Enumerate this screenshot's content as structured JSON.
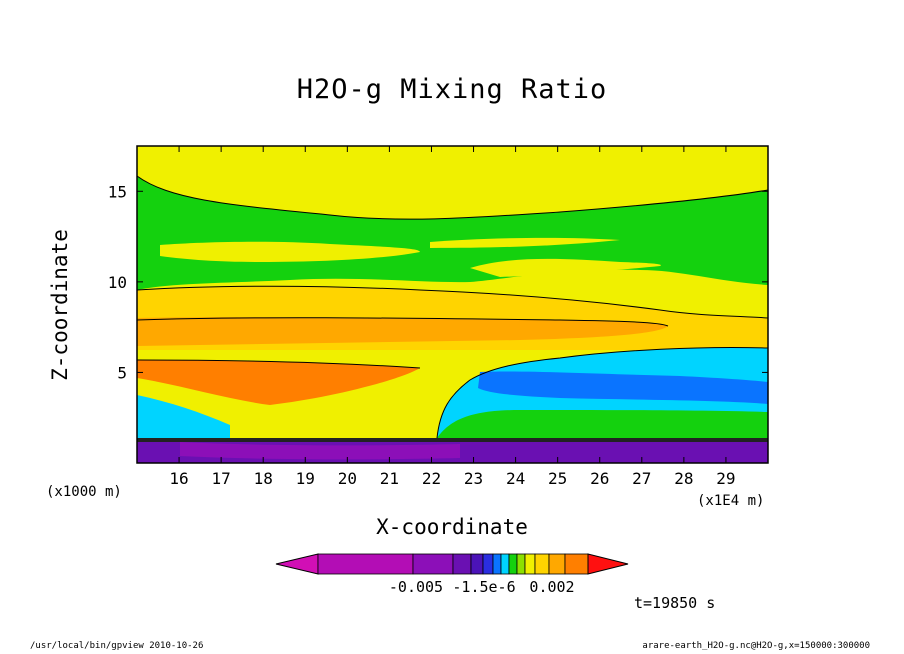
{
  "chart_data": {
    "type": "heatmap",
    "title": "H2O-g Mixing Ratio",
    "xlabel": "X-coordinate",
    "ylabel": "Z-coordinate",
    "x_unit": "(x1E4 m)",
    "y_unit": "(x1000 m)",
    "xlim": [
      15,
      30
    ],
    "ylim": [
      0,
      17.5
    ],
    "x_ticks": [
      16,
      17,
      18,
      19,
      20,
      21,
      22,
      23,
      24,
      25,
      26,
      27,
      28,
      29
    ],
    "y_ticks": [
      5,
      10,
      15
    ],
    "grid": false,
    "colorbar": {
      "colors": [
        "#d10fb5",
        "#b30db5",
        "#8c0fb8",
        "#6a10b2",
        "#4b13b8",
        "#2a2ee0",
        "#0a74ff",
        "#00d4ff",
        "#14d10e",
        "#8ce000",
        "#f0f000",
        "#ffd400",
        "#ffa800",
        "#ff7f00",
        "#ff1010"
      ],
      "labels": [
        "-0.005",
        "-1.5e-6",
        "0.002"
      ]
    },
    "annotation_time": "t=19850 s"
  },
  "footer": {
    "command": "/usr/local/bin/gpview   2010-10-26",
    "source": "arare-earth_H2O-g.nc@H2O-g,x=150000:300000"
  }
}
